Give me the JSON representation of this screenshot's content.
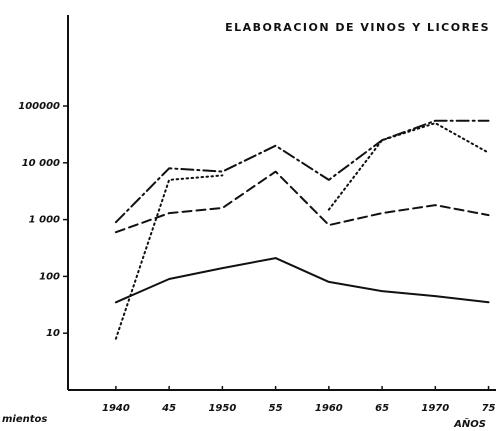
{
  "chart_data": {
    "type": "line",
    "title": "ELABORACION DE VINOS Y LICORES",
    "annotations": [
      "mientos"
    ],
    "xlabel": "AÑOS",
    "x": [
      1940,
      1945,
      1950,
      1955,
      1960,
      1965,
      1970,
      1975
    ],
    "series": [
      {
        "color": "#111111",
        "dash": "solid",
        "values": [
          35,
          90,
          140,
          210,
          80,
          55,
          45,
          35
        ]
      },
      {
        "color": "#111111",
        "dash": "dashed",
        "values": [
          600,
          1300,
          1600,
          7000,
          800,
          1300,
          1800,
          1200
        ]
      },
      {
        "color": "#111111",
        "dash": "dotted",
        "values": [
          8,
          5000,
          6000,
          null,
          1500,
          25000,
          50000,
          15000
        ]
      },
      {
        "color": "#111111",
        "dash": "dashdot",
        "values": [
          900,
          8000,
          7000,
          20000,
          5000,
          25000,
          55000,
          55000
        ]
      }
    ],
    "log_y": true,
    "xlim": [
      1935.5,
      1975.7
    ],
    "xticks": [
      1940,
      {
        "value": 1945,
        "label": "45"
      },
      1950,
      {
        "value": 1955,
        "label": "55"
      },
      1960,
      {
        "value": 1965,
        "label": "65"
      },
      1970,
      {
        "value": 1975,
        "label": "75"
      }
    ],
    "ylim": [
      1,
      4000000
    ],
    "yticks": [
      10,
      100,
      {
        "value": 1000,
        "label": "1 000"
      },
      {
        "value": 10000,
        "label": "10 000"
      },
      100000
    ]
  }
}
